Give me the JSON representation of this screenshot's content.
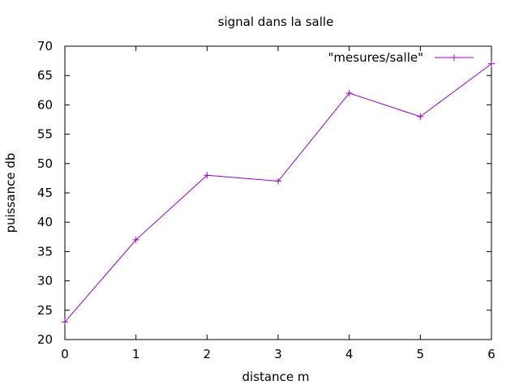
{
  "colors": {
    "series": "#9400d3",
    "axis": "#000000",
    "background": "#ffffff"
  },
  "chart_data": {
    "type": "line",
    "title": "signal dans la salle",
    "xlabel": "distance m",
    "ylabel": "puissance db",
    "xlim": [
      0,
      6
    ],
    "ylim": [
      20,
      70
    ],
    "x_ticks": [
      0,
      1,
      2,
      3,
      4,
      5,
      6
    ],
    "y_ticks": [
      20,
      25,
      30,
      35,
      40,
      45,
      50,
      55,
      60,
      65,
      70
    ],
    "grid": false,
    "legend_position": "top-right",
    "marker": "plus",
    "series": [
      {
        "name": "\"mesures/salle\"",
        "x": [
          0,
          1,
          2,
          3,
          4,
          5,
          6
        ],
        "y": [
          23,
          37,
          48,
          47,
          62,
          58,
          67
        ]
      }
    ]
  }
}
